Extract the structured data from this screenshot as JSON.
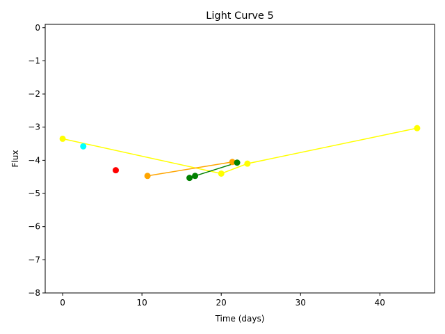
{
  "chart_data": {
    "type": "scatter",
    "title": "Light Curve 5",
    "xlabel": "Time (days)",
    "ylabel": "Flux",
    "xlim": [
      -2.2,
      46.9
    ],
    "ylim": [
      -8,
      0.1
    ],
    "xticks": [
      0,
      10,
      20,
      30,
      40
    ],
    "xtick_labels": [
      "0",
      "10",
      "20",
      "30",
      "40"
    ],
    "yticks": [
      0,
      -1,
      -2,
      -3,
      -4,
      -5,
      -6,
      -7,
      -8
    ],
    "ytick_labels": [
      "0",
      "−1",
      "−2",
      "−3",
      "−4",
      "−5",
      "−6",
      "−7",
      "−8"
    ],
    "grid": false,
    "legend": "none",
    "series": [
      {
        "color": "#ffff00",
        "points": [
          [
            0.0,
            -3.35
          ],
          [
            20.0,
            -4.4
          ],
          [
            23.3,
            -4.1
          ],
          [
            44.7,
            -3.03
          ]
        ]
      },
      {
        "color": "#00ffff",
        "points": [
          [
            2.6,
            -3.58
          ]
        ]
      },
      {
        "color": "#ff0000",
        "points": [
          [
            6.7,
            -4.3
          ]
        ]
      },
      {
        "color": "#ffa500",
        "points": [
          [
            10.7,
            -4.47
          ],
          [
            21.4,
            -4.05
          ]
        ]
      },
      {
        "color": "#008000",
        "points": [
          [
            16.0,
            -4.53
          ],
          [
            16.7,
            -4.47
          ],
          [
            22.0,
            -4.07
          ]
        ]
      }
    ]
  }
}
